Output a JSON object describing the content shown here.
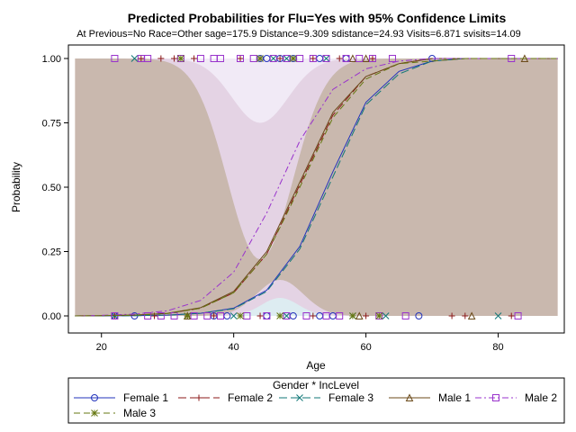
{
  "chart_data": {
    "type": "line",
    "title": "Predicted Probabilities for Flu=Yes with 95% Confidence Limits",
    "subtitle": "At Previous=No Race=Other sage=175.9 Distance=9.309 sdistance=24.93 Visits=6.871 svisits=14.09",
    "xlabel": "Age",
    "ylabel": "Probability",
    "xlim": [
      15,
      90
    ],
    "ylim": [
      0,
      1
    ],
    "xticks": [
      "20",
      "40",
      "60",
      "80"
    ],
    "yticks": [
      "0.00",
      "0.25",
      "0.50",
      "0.75",
      "1.00"
    ],
    "grid": false,
    "legend": {
      "title": "Gender * IncLevel",
      "placement": "bottom",
      "entries": [
        "Female 1",
        "Female 2",
        "Female 3",
        "Male 1",
        "Male 2",
        "Male 3"
      ]
    },
    "x": [
      16,
      20,
      25,
      30,
      35,
      40,
      45,
      50,
      55,
      60,
      65,
      70,
      75,
      80,
      85,
      89
    ],
    "series": [
      {
        "name": "Female 1",
        "color": "#2233bb",
        "marker": "circle",
        "values": [
          0.0,
          0.0,
          0.001,
          0.003,
          0.01,
          0.03,
          0.1,
          0.27,
          0.56,
          0.83,
          0.95,
          0.99,
          1.0,
          1.0,
          1.0,
          1.0
        ],
        "obs_y0_x": [
          22,
          25,
          37,
          39,
          45,
          49,
          53,
          55,
          68
        ],
        "obs_y1_x": [
          44,
          45,
          47,
          49,
          53,
          57,
          70
        ]
      },
      {
        "name": "Female 2",
        "color": "#8b1a1a",
        "marker": "plus",
        "values": [
          0.0,
          0.001,
          0.003,
          0.01,
          0.03,
          0.09,
          0.24,
          0.51,
          0.78,
          0.93,
          0.98,
          1.0,
          1.0,
          1.0,
          1.0,
          1.0
        ],
        "obs_y0_x": [
          22,
          28,
          33,
          37,
          44,
          52,
          60,
          73,
          75,
          82
        ],
        "obs_y1_x": [
          26,
          29,
          31,
          34,
          41,
          44,
          47,
          52,
          56,
          61
        ]
      },
      {
        "name": "Female 3",
        "color": "#117777",
        "marker": "x",
        "values": [
          0.0,
          0.0,
          0.001,
          0.003,
          0.01,
          0.028,
          0.095,
          0.26,
          0.54,
          0.82,
          0.94,
          0.99,
          1.0,
          1.0,
          1.0,
          1.0
        ],
        "obs_y0_x": [
          22,
          40,
          48,
          58,
          63,
          80
        ],
        "obs_y1_x": [
          25,
          46,
          48,
          54
        ]
      },
      {
        "name": "Male 1",
        "color": "#6b4a1a",
        "marker": "triangle",
        "values": [
          0.0,
          0.001,
          0.003,
          0.01,
          0.032,
          0.095,
          0.25,
          0.52,
          0.79,
          0.93,
          0.98,
          1.0,
          1.0,
          1.0,
          1.0,
          1.0
        ],
        "obs_y0_x": [
          33,
          59,
          76
        ],
        "obs_y1_x": [
          58,
          60,
          84
        ]
      },
      {
        "name": "Male 2",
        "color": "#9933cc",
        "marker": "square",
        "values": [
          0.0,
          0.002,
          0.007,
          0.02,
          0.06,
          0.17,
          0.4,
          0.68,
          0.88,
          0.96,
          0.99,
          1.0,
          1.0,
          1.0,
          1.0,
          1.0
        ],
        "obs_y0_x": [
          22,
          27,
          29,
          31,
          34,
          36,
          38,
          42,
          45,
          48,
          51,
          54,
          56,
          62,
          66,
          83
        ],
        "obs_y1_x": [
          22,
          26,
          27,
          32,
          35,
          37,
          38,
          41,
          43,
          46,
          48,
          50,
          52,
          54,
          57,
          59,
          61,
          64,
          82
        ]
      },
      {
        "name": "Male 3",
        "color": "#667711",
        "marker": "asterisk",
        "values": [
          0.0,
          0.001,
          0.003,
          0.009,
          0.03,
          0.09,
          0.24,
          0.5,
          0.77,
          0.92,
          0.98,
          0.99,
          1.0,
          1.0,
          1.0,
          1.0
        ],
        "obs_y0_x": [
          33,
          41,
          47,
          58,
          62
        ],
        "obs_y1_x": [
          32,
          44,
          49
        ]
      }
    ],
    "confidence_band": {
      "color": "#c9b8ae",
      "light_colors": [
        "#e7d6ea",
        "#f2ecf7",
        "#dceef2"
      ]
    }
  }
}
